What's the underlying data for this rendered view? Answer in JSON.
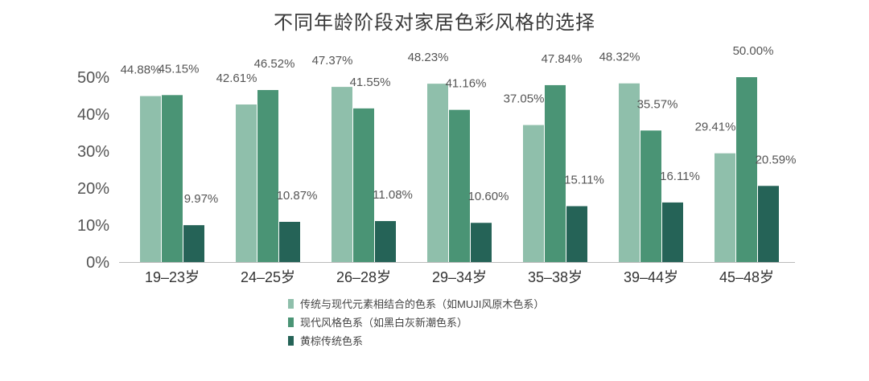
{
  "chart_data": {
    "type": "bar",
    "title": "不同年龄阶段对家居色彩风格的选择",
    "categories": [
      "19–23岁",
      "24–25岁",
      "26–28岁",
      "29–34岁",
      "35–38岁",
      "39–44岁",
      "45–48岁"
    ],
    "series": [
      {
        "name": "传统与现代元素相结合的色系（如MUJI风原木色系）",
        "color": "#8fbfab",
        "values": [
          44.88,
          42.61,
          47.37,
          48.23,
          37.05,
          48.32,
          29.41
        ],
        "labels": [
          "44.88%",
          "42.61%",
          "47.37%",
          "48.23%",
          "37.05%",
          "48.32%",
          "29.41%"
        ]
      },
      {
        "name": "现代风格色系（如黑白灰新潮色系）",
        "color": "#4a9475",
        "values": [
          45.15,
          46.52,
          41.55,
          41.16,
          47.84,
          35.57,
          50.0
        ],
        "labels": [
          "45.15%",
          "46.52%",
          "41.55%",
          "41.16%",
          "47.84%",
          "35.57%",
          "50.00%"
        ]
      },
      {
        "name": "黄棕传统色系",
        "color": "#256357",
        "values": [
          9.97,
          10.87,
          11.08,
          10.6,
          15.11,
          16.11,
          20.59
        ],
        "labels": [
          "9.97%",
          "10.87%",
          "11.08%",
          "10.60%",
          "15.11%",
          "16.11%",
          "20.59%"
        ]
      }
    ],
    "ylim": [
      0,
      50
    ],
    "yticks": [
      0,
      10,
      20,
      30,
      40,
      50
    ],
    "ytick_labels": [
      "0%",
      "10%",
      "20%",
      "30%",
      "40%",
      "50%"
    ],
    "grid": false,
    "legend_position": "bottom"
  }
}
